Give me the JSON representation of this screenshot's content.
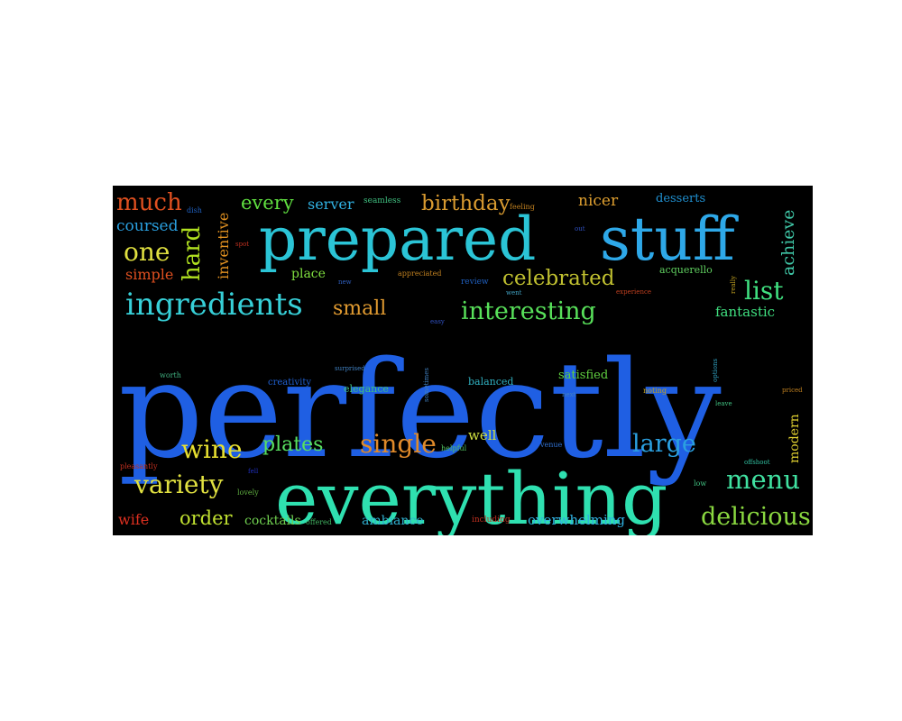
{
  "word_cloud": {
    "background": "#000000",
    "words": [
      {
        "text": "perfectly",
        "color": "#1f5fe3"
      },
      {
        "text": "everything",
        "color": "#2fe0b0"
      },
      {
        "text": "prepared",
        "color": "#2bc4d6"
      },
      {
        "text": "stuff",
        "color": "#2ea8e8"
      },
      {
        "text": "ingredients",
        "color": "#37d0d8"
      },
      {
        "text": "interesting",
        "color": "#58e05a"
      },
      {
        "text": "celebrated",
        "color": "#c0c030"
      },
      {
        "text": "birthday",
        "color": "#d89a30"
      },
      {
        "text": "single",
        "color": "#e08a2a"
      },
      {
        "text": "large",
        "color": "#2ba0e0"
      },
      {
        "text": "menu",
        "color": "#40e0a0"
      },
      {
        "text": "delicious",
        "color": "#8ad840"
      },
      {
        "text": "variety",
        "color": "#e0e040"
      },
      {
        "text": "wine",
        "color": "#e8e030"
      },
      {
        "text": "plates",
        "color": "#58e060"
      },
      {
        "text": "one",
        "color": "#e0e040"
      },
      {
        "text": "hard",
        "color": "#b0e020"
      },
      {
        "text": "much",
        "color": "#e05020"
      },
      {
        "text": "coursed",
        "color": "#2aa0e0"
      },
      {
        "text": "simple",
        "color": "#e05020"
      },
      {
        "text": "every",
        "color": "#60e040"
      },
      {
        "text": "server",
        "color": "#30b0e0"
      },
      {
        "text": "inventive",
        "color": "#e09020"
      },
      {
        "text": "small",
        "color": "#e09a30"
      },
      {
        "text": "list",
        "color": "#40e080"
      },
      {
        "text": "achieve",
        "color": "#40c8a8"
      },
      {
        "text": "nicer",
        "color": "#e0a030"
      },
      {
        "text": "desserts",
        "color": "#2090d0"
      },
      {
        "text": "fantastic",
        "color": "#40e080"
      },
      {
        "text": "order",
        "color": "#c0e030"
      },
      {
        "text": "cocktails",
        "color": "#70d050"
      },
      {
        "text": "ambiance",
        "color": "#30b0d0"
      },
      {
        "text": "overwhelming",
        "color": "#30b0e0"
      },
      {
        "text": "wife",
        "color": "#e03020"
      },
      {
        "text": "well",
        "color": "#d0e040"
      },
      {
        "text": "modern",
        "color": "#e0d030"
      },
      {
        "text": "place",
        "color": "#80e040"
      },
      {
        "text": "acquerello",
        "color": "#60d060"
      },
      {
        "text": "balanced",
        "color": "#30b0c0"
      },
      {
        "text": "satisfied",
        "color": "#60d040"
      },
      {
        "text": "elegance",
        "color": "#40c080"
      },
      {
        "text": "creativity",
        "color": "#2060d0"
      },
      {
        "text": "seamless",
        "color": "#40c080"
      },
      {
        "text": "feeling",
        "color": "#c08020"
      },
      {
        "text": "dish",
        "color": "#2060c0"
      },
      {
        "text": "spot",
        "color": "#c03020"
      },
      {
        "text": "new",
        "color": "#3060c0"
      },
      {
        "text": "appreciated",
        "color": "#c08020"
      },
      {
        "text": "review",
        "color": "#2060c0"
      },
      {
        "text": "went",
        "color": "#40a0c0"
      },
      {
        "text": "easy",
        "color": "#3050c0"
      },
      {
        "text": "experience",
        "color": "#c04020"
      },
      {
        "text": "really",
        "color": "#c0a020"
      },
      {
        "text": "options",
        "color": "#30a0c0"
      },
      {
        "text": "noting",
        "color": "#c0a020"
      },
      {
        "text": "next",
        "color": "#4080c0"
      },
      {
        "text": "leave",
        "color": "#40c080"
      },
      {
        "text": "priced",
        "color": "#c08020"
      },
      {
        "text": "offshoot",
        "color": "#30c0a0"
      },
      {
        "text": "venue",
        "color": "#3070d0"
      },
      {
        "text": "helpful",
        "color": "#50c060"
      },
      {
        "text": "including",
        "color": "#c03020"
      },
      {
        "text": "offered",
        "color": "#40b060"
      },
      {
        "text": "fell",
        "color": "#2030c0"
      },
      {
        "text": "lovely",
        "color": "#60b040"
      },
      {
        "text": "low",
        "color": "#40c080"
      },
      {
        "text": "pleasantly",
        "color": "#c03020"
      },
      {
        "text": "worth",
        "color": "#40b080"
      },
      {
        "text": "surprised",
        "color": "#4080c0"
      },
      {
        "text": "sometimes",
        "color": "#4080c0"
      },
      {
        "text": "out",
        "color": "#3050c0"
      }
    ]
  }
}
